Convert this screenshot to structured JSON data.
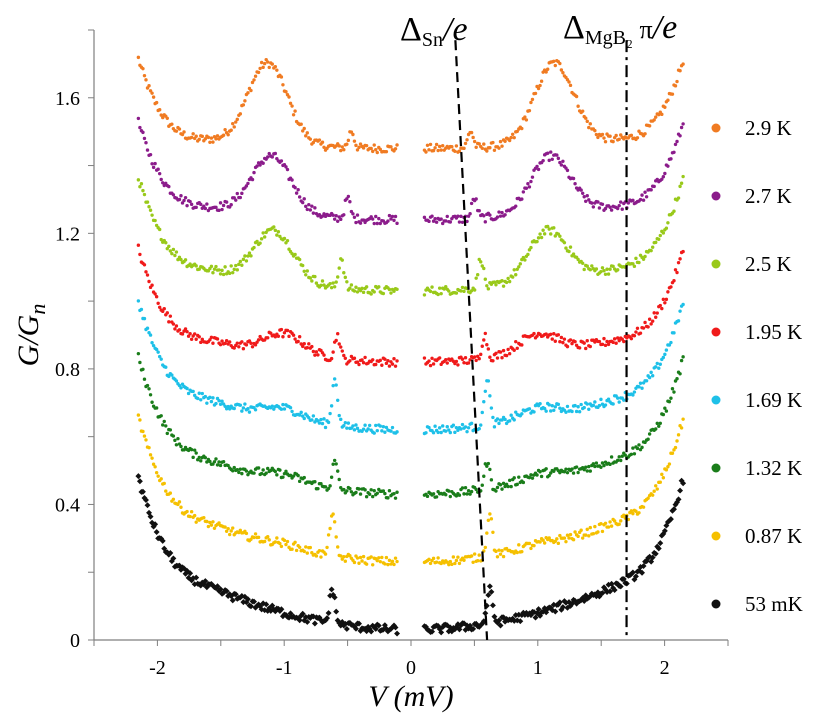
{
  "chart_data": {
    "type": "scatter",
    "xlabel": "V (mV)",
    "ylabel": "G/G_n",
    "xlim": [
      -2.5,
      2.5
    ],
    "ylim": [
      0,
      1.8
    ],
    "x_ticks": [
      -2,
      -1,
      0,
      1,
      2
    ],
    "x_tick_labels": [
      "-2",
      "-1",
      "0",
      "1",
      "2"
    ],
    "y_ticks": [
      0,
      0.4,
      0.8,
      1.2,
      1.6
    ],
    "y_tick_labels": [
      "0",
      "0.4",
      "0.8",
      "1.2",
      "1.6"
    ],
    "grid": false,
    "legend_position": "right",
    "annotations": [
      {
        "text_main": "Δ",
        "text_sub": "Sn",
        "text_end": "/e",
        "line_style": "dashed",
        "line_x": [
          0.35,
          0.6
        ],
        "line_y": [
          1.77,
          0.0
        ]
      },
      {
        "text_main": "Δ",
        "text_sub": "MgB₂",
        "text_mid": " π",
        "text_end": "/e",
        "line_style": "dash-dot",
        "line_x": [
          1.7,
          1.7
        ],
        "line_y": [
          1.77,
          0.0
        ]
      }
    ],
    "series": [
      {
        "name": "2.9 K",
        "color": "#f07b22",
        "offset": 1.45,
        "peak_x": 1.13,
        "peak_h": 0.24,
        "sharp_x": 0.47,
        "sharp_h": 0.05,
        "slope": 0.02,
        "gap_dip": 0.0
      },
      {
        "name": "2.7 K",
        "color": "#8b1c8b",
        "offset": 1.24,
        "peak_x": 1.1,
        "peak_h": 0.17,
        "sharp_x": 0.5,
        "sharp_h": 0.06,
        "slope": 0.03,
        "gap_dip": 0.0
      },
      {
        "name": "2.5 K",
        "color": "#99c91a",
        "offset": 1.03,
        "peak_x": 1.08,
        "peak_h": 0.15,
        "sharp_x": 0.55,
        "sharp_h": 0.09,
        "slope": 0.05,
        "gap_dip": 0.0
      },
      {
        "name": "1.95 K",
        "color": "#f01a1a",
        "offset": 0.82,
        "peak_x": 1.0,
        "peak_h": 0.06,
        "sharp_x": 0.58,
        "sharp_h": 0.07,
        "slope": 0.05,
        "gap_dip": 0.0
      },
      {
        "name": "1.69 K",
        "color": "#1ec0e8",
        "offset": 0.62,
        "peak_x": 1.0,
        "peak_h": 0.03,
        "sharp_x": 0.6,
        "sharp_h": 0.14,
        "slope": 0.07,
        "gap_dip": 0.0
      },
      {
        "name": "1.32 K",
        "color": "#1a7d1a",
        "offset": 0.43,
        "peak_x": 1.0,
        "peak_h": 0.02,
        "sharp_x": 0.6,
        "sharp_h": 0.08,
        "slope": 0.08,
        "gap_dip": 0.0
      },
      {
        "name": "0.87 K",
        "color": "#f5c000",
        "offset": 0.23,
        "peak_x": 1.0,
        "peak_h": 0.01,
        "sharp_x": 0.62,
        "sharp_h": 0.13,
        "slope": 0.09,
        "gap_dip": 0.0
      },
      {
        "name": "53 mK",
        "color": "#111111",
        "offset": 0.03,
        "peak_x": 1.0,
        "peak_h": 0.0,
        "sharp_x": 0.62,
        "sharp_h": 0.1,
        "slope": 0.1,
        "gap_dip": 0.0
      }
    ]
  }
}
